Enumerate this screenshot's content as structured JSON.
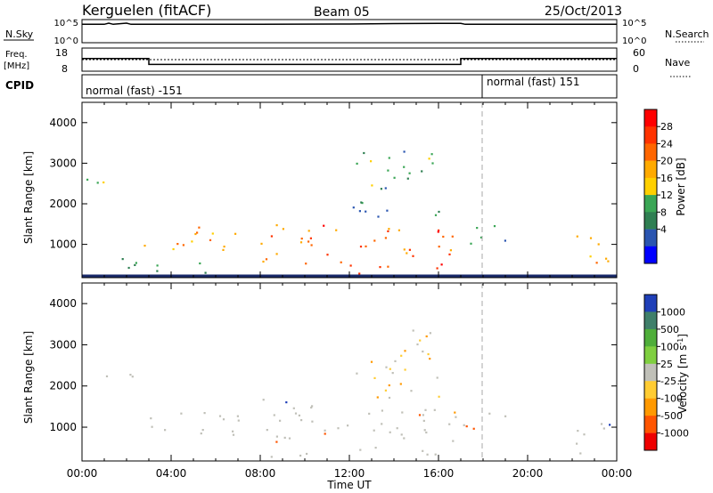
{
  "header": {
    "station": "Kerguelen (fitACF)",
    "beam": "Beam 05",
    "date": "25/Oct/2013"
  },
  "strip_panels": {
    "nsky": {
      "label": "N.Sky",
      "ticks": [
        "10^5",
        "10^0"
      ],
      "right_label": "N.Search",
      "right_ticks": [
        "10^5",
        "10^0"
      ]
    },
    "freq": {
      "label_line1": "Freq.",
      "label_line2": "[MHz]",
      "ticks": [
        "18",
        "8"
      ],
      "right_label": "Nave",
      "right_ticks": [
        "60",
        "0"
      ]
    },
    "cpid": {
      "label": "CPID",
      "segments": [
        "normal (fast) -151",
        "normal (fast) 151"
      ]
    }
  },
  "axes": {
    "xlabel": "Time UT",
    "ylabel": "Slant Range [km]",
    "x_ticks": [
      "00:00",
      "04:00",
      "08:00",
      "12:00",
      "16:00",
      "20:00",
      "00:00"
    ],
    "y_ticks": [
      "1000",
      "2000",
      "3000",
      "4000"
    ]
  },
  "colorbars": {
    "power": {
      "label": "Power [dB]",
      "ticks": [
        "28",
        "24",
        "20",
        "16",
        "12",
        "8",
        "4"
      ],
      "colors": [
        "#ff0000",
        "#ff3300",
        "#ff6600",
        "#ffaa00",
        "#ffd000",
        "#3aa655",
        "#2f7f52",
        "#2a55b0",
        "#0000ff"
      ]
    },
    "velocity": {
      "label": "Velocity [m s",
      "label_sup": "-1",
      "label_close": "]",
      "ticks": [
        "1000",
        "500",
        "100",
        "25",
        "-25",
        "-100",
        "-500",
        "-1000"
      ],
      "colors": [
        "#1f3fb8",
        "#3f7f6a",
        "#4fae3a",
        "#7fcf40",
        "#c0c0b8",
        "#ffcc33",
        "#ff9900",
        "#ff5500",
        "#ee0000"
      ]
    }
  },
  "chart_data": [
    {
      "type": "line",
      "panel": "N.Sky / N.Search",
      "x_unit": "hours UT",
      "xlim": [
        0,
        24
      ],
      "ylim": [
        1,
        100000
      ],
      "y_scale": "log",
      "series": [
        {
          "x": [
            0,
            1,
            1.2,
            1.4,
            2,
            2.2,
            8,
            12,
            14,
            16,
            17,
            17.2,
            24
          ],
          "y": [
            30000,
            30000,
            60000,
            30000,
            60000,
            30000,
            30000,
            35000,
            45000,
            50000,
            50000,
            30000,
            30000
          ]
        }
      ]
    },
    {
      "type": "line",
      "panel": "Freq. / Nave",
      "x_unit": "hours UT",
      "xlim": [
        0,
        24
      ],
      "ylim": [
        8,
        18
      ],
      "series": [
        {
          "x": [
            0,
            3,
            3,
            17,
            17,
            24
          ],
          "y": [
            14,
            14,
            11,
            11,
            14,
            14
          ]
        }
      ]
    },
    {
      "type": "heatmap",
      "panel": "Power",
      "x_unit": "hours UT",
      "y_unit": "km",
      "xlim": [
        0,
        24
      ],
      "ylim": [
        180,
        4500
      ],
      "scatter_regions": [
        {
          "t0": 0.2,
          "t1": 2.4,
          "r0": 2250,
          "r1": 2650,
          "level": 14
        },
        {
          "t0": 2.5,
          "t1": 7.2,
          "r0": 800,
          "r1": 1500,
          "level": 20
        },
        {
          "t0": 0.5,
          "t1": 6,
          "r0": 300,
          "r1": 700,
          "level": 10
        },
        {
          "t0": 8,
          "t1": 17,
          "r0": 300,
          "r1": 1500,
          "level": 24
        },
        {
          "t0": 12,
          "t1": 16,
          "r0": 1700,
          "r1": 3400,
          "level": 10
        },
        {
          "t0": 17,
          "t1": 19,
          "r0": 900,
          "r1": 1500,
          "level": 10
        },
        {
          "t0": 22,
          "t1": 23.8,
          "r0": 350,
          "r1": 1300,
          "level": 18
        }
      ]
    },
    {
      "type": "heatmap",
      "panel": "Velocity",
      "x_unit": "hours UT",
      "y_unit": "km",
      "xlim": [
        0,
        24
      ],
      "ylim": [
        180,
        4500
      ],
      "scatter_regions": [
        {
          "t0": 0.2,
          "t1": 2.4,
          "r0": 2250,
          "r1": 2650,
          "level": 0
        },
        {
          "t0": 2.5,
          "t1": 7.2,
          "r0": 800,
          "r1": 1500,
          "level": 0
        },
        {
          "t0": 8,
          "t1": 17,
          "r0": 300,
          "r1": 1700,
          "level": 0
        },
        {
          "t0": 12,
          "t1": 16,
          "r0": 1700,
          "r1": 3400,
          "level": -60
        },
        {
          "t0": 17,
          "t1": 19,
          "r0": 900,
          "r1": 1500,
          "level": -120
        },
        {
          "t0": 22,
          "t1": 23.8,
          "r0": 350,
          "r1": 1300,
          "level": 0
        }
      ]
    }
  ]
}
